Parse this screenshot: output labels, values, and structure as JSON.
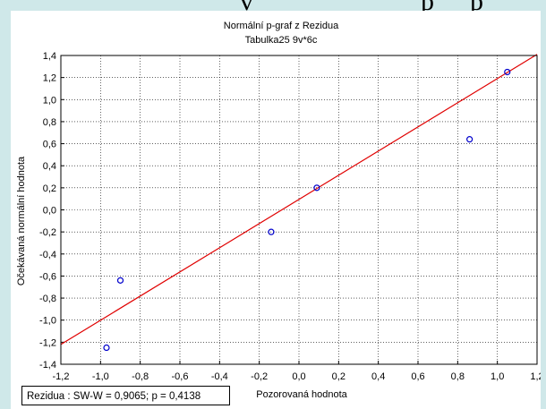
{
  "top_fragment": [
    "v",
    "p",
    "p"
  ],
  "chart_data": {
    "type": "scatter",
    "title": "Normální p-graf z Rezidua",
    "subtitle": "Tabulka25 9v*6c",
    "xlabel": "Pozorovaná hodnota",
    "ylabel": "Očekávaná normální hodnota",
    "xlim": [
      -1.2,
      1.2
    ],
    "ylim": [
      -1.4,
      1.4
    ],
    "x_ticks": [
      "-1,2",
      "-1,0",
      "-0,8",
      "-0,6",
      "-0,4",
      "-0,2",
      "0,0",
      "0,2",
      "0,4",
      "0,6",
      "0,8",
      "1,0",
      "1,2"
    ],
    "y_ticks": [
      "1,4",
      "1,2",
      "1,0",
      "0,8",
      "0,6",
      "0,4",
      "0,2",
      "0,0",
      "-0,2",
      "-0,4",
      "-0,6",
      "-0,8",
      "-1,0",
      "-1,2",
      "-1,4"
    ],
    "grid": true,
    "points": [
      {
        "x": -0.97,
        "y": -1.25
      },
      {
        "x": -0.9,
        "y": -0.64
      },
      {
        "x": -0.14,
        "y": -0.2
      },
      {
        "x": 0.09,
        "y": 0.2
      },
      {
        "x": 0.86,
        "y": 0.64
      },
      {
        "x": 1.05,
        "y": 1.25
      }
    ],
    "fit_line": {
      "x": [
        -1.2,
        1.2
      ],
      "y": [
        -1.22,
        1.41
      ]
    },
    "point_color": "#0000cc",
    "line_color": "#e00000"
  },
  "stats": "Rezidua :  SW-W = 0,9065; p = 0,4138"
}
